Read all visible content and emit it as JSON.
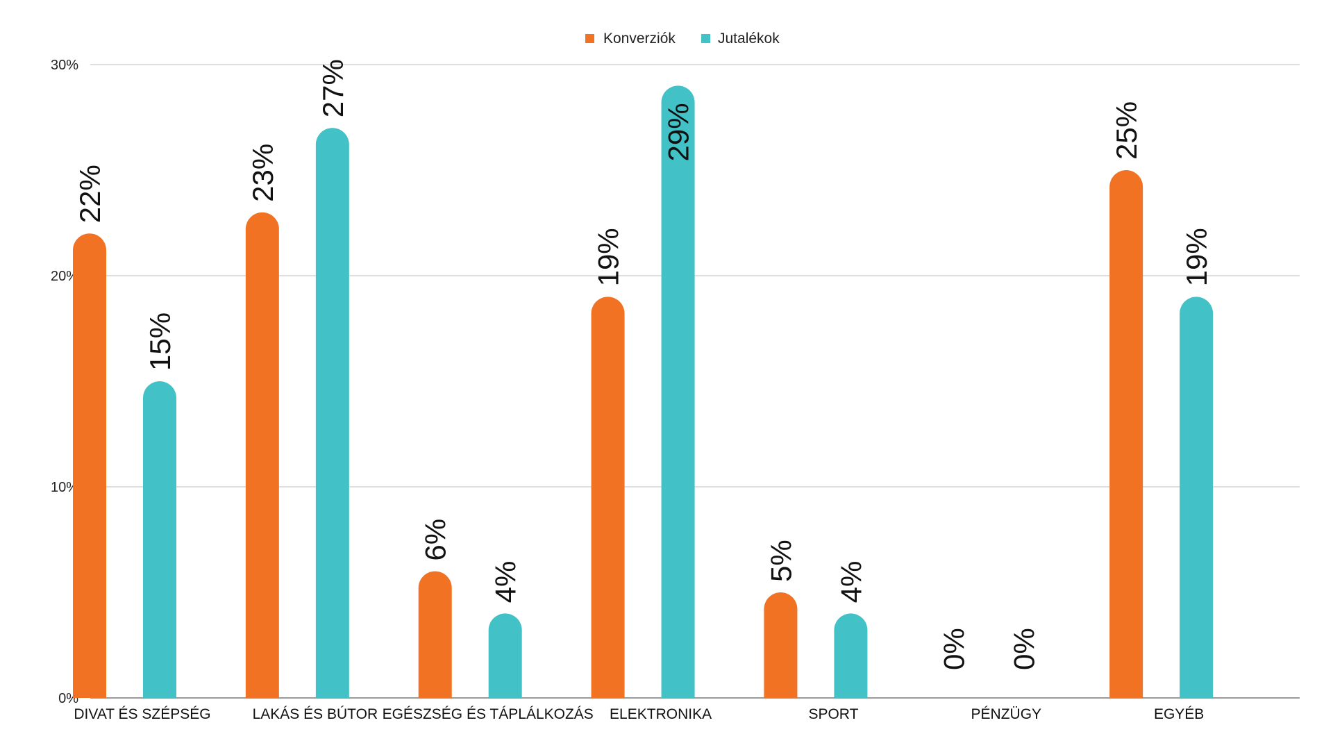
{
  "chart_data": {
    "type": "bar",
    "title": "",
    "xlabel": "",
    "ylabel": "",
    "ylim": [
      0,
      30
    ],
    "yticks": [
      "0%",
      "10%",
      "20%",
      "30%"
    ],
    "grid": true,
    "legend_position": "top-center",
    "categories": [
      "DIVAT ÉS SZÉPSÉG",
      "LAKÁS ÉS BÚTOR",
      "EGÉSZSÉG ÉS TÁPLÁLKOZÁS",
      "ELEKTRONIKA",
      "SPORT",
      "PÉNZÜGY",
      "EGYÉB"
    ],
    "series": [
      {
        "name": "Konverziók",
        "color": "#f27224",
        "values": [
          22,
          23,
          6,
          19,
          5,
          0,
          25
        ],
        "labels": [
          "22%",
          "23%",
          "6%",
          "19%",
          "5%",
          "0%",
          "25%"
        ]
      },
      {
        "name": "Jutalékok",
        "color": "#42c1c6",
        "values": [
          15,
          27,
          4,
          29,
          4,
          0,
          19
        ],
        "labels": [
          "15%",
          "27%",
          "4%",
          "29%",
          "4%",
          "0%",
          "19%"
        ]
      }
    ]
  }
}
